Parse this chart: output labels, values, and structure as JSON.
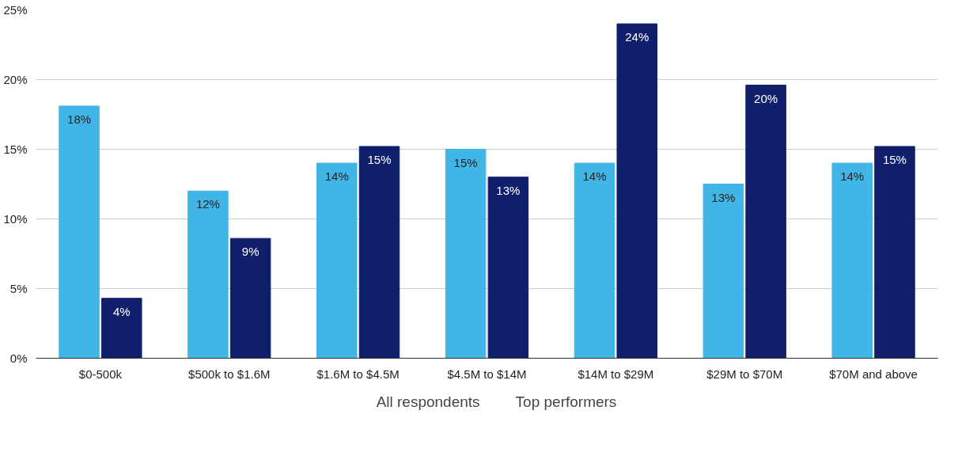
{
  "chart_data": {
    "type": "bar",
    "categories": [
      "$0-500k",
      "$500k to $1.6M",
      "$1.6M to $4.5M",
      "$4.5M to $14M",
      "$14M to $29M",
      "$29M to $70M",
      "$70M and above"
    ],
    "series": [
      {
        "name": "All respondents",
        "color": "#41b6e6",
        "values": [
          18.1,
          12.0,
          14.0,
          15.0,
          14.0,
          12.5,
          14.0
        ],
        "value_labels": [
          "18%",
          "12%",
          "14%",
          "15%",
          "14%",
          "13%",
          "14%"
        ]
      },
      {
        "name": "Top performers",
        "color": "#101f6b",
        "values": [
          4.3,
          8.6,
          15.2,
          13.0,
          24.0,
          19.6,
          15.2
        ],
        "value_labels": [
          "4%",
          "9%",
          "15%",
          "13%",
          "24%",
          "20%",
          "15%"
        ]
      }
    ],
    "ylim": [
      0,
      25
    ],
    "yticks": [
      {
        "value": 0,
        "label": "0%"
      },
      {
        "value": 5,
        "label": "5%"
      },
      {
        "value": 10,
        "label": "10%"
      },
      {
        "value": 15,
        "label": "15%"
      },
      {
        "value": 20,
        "label": "20%"
      },
      {
        "value": 25,
        "label": "25%"
      }
    ],
    "grid": "y",
    "legend": "bottom"
  }
}
